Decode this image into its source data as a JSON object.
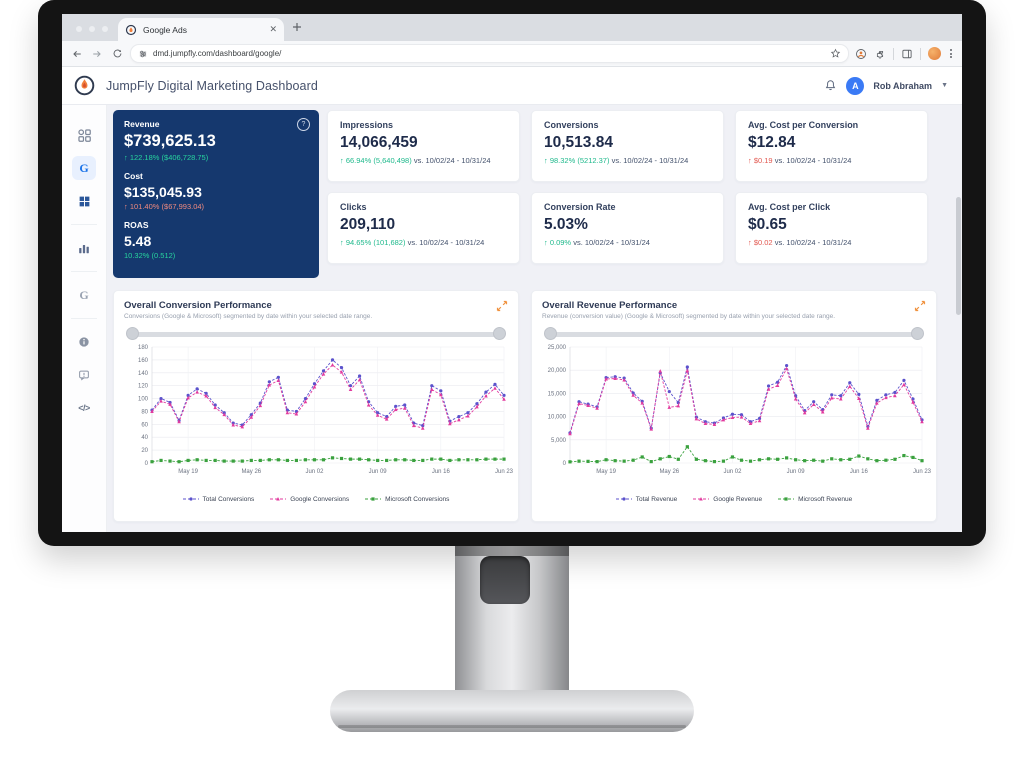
{
  "browser": {
    "tab_title": "Google Ads",
    "url": "dmd.jumpfly.com/dashboard/google/"
  },
  "header": {
    "title": "JumpFly Digital Marketing Dashboard",
    "user_name": "Rob Abraham",
    "avatar_letter": "A"
  },
  "sidebar": {
    "items": [
      {
        "name": "apps-grid"
      },
      {
        "name": "google-ads",
        "glyph": "G",
        "active": true
      },
      {
        "name": "microsoft-ads"
      },
      {
        "name": "bar-chart"
      },
      {
        "name": "google-analytics",
        "glyph": "G"
      },
      {
        "name": "info"
      },
      {
        "name": "feedback"
      },
      {
        "name": "developer",
        "glyph": "</>"
      }
    ]
  },
  "kpi": {
    "primary": {
      "help_glyph": "?",
      "metrics": [
        {
          "label": "Revenue",
          "value": "$739,625.13",
          "delta": "↑ 122.18% ($406,728.75)",
          "direction": "pos"
        },
        {
          "label": "Cost",
          "value": "$135,045.93",
          "delta": "↑ 101.40% ($67,993.04)",
          "direction": "neg"
        },
        {
          "label": "ROAS",
          "value": "5.48",
          "delta": "10.32% (0.512)",
          "direction": "pos"
        }
      ]
    },
    "cards": [
      {
        "label": "Impressions",
        "value": "14,066,459",
        "delta": "↑ 66.94% (5,640,498)",
        "direction": "pos",
        "compare": "vs. 10/02/24 - 10/31/24"
      },
      {
        "label": "Conversions",
        "value": "10,513.84",
        "delta": "↑ 98.32% (5212.37)",
        "direction": "pos",
        "compare": "vs. 10/02/24 - 10/31/24"
      },
      {
        "label": "Avg. Cost per Conversion",
        "value": "$12.84",
        "delta": "↑ $0.19",
        "direction": "neg",
        "compare": "vs. 10/02/24 - 10/31/24"
      },
      {
        "label": "Clicks",
        "value": "209,110",
        "delta": "↑ 94.65% (101,682)",
        "direction": "pos",
        "compare": "vs. 10/02/24 - 10/31/24"
      },
      {
        "label": "Conversion Rate",
        "value": "5.03%",
        "delta": "↑ 0.09%",
        "direction": "pos",
        "compare": "vs. 10/02/24 - 10/31/24"
      },
      {
        "label": "Avg. Cost per Click",
        "value": "$0.65",
        "delta": "↑ $0.02",
        "direction": "neg",
        "compare": "vs. 10/02/24 - 10/31/24"
      }
    ]
  },
  "chart_data": [
    {
      "type": "line",
      "title": "Overall Conversion Performance",
      "subtitle": "Conversions (Google & Microsoft) segmented by date within your selected date range.",
      "x_labels": [
        "May 19",
        "May 26",
        "Jun 02",
        "Jun 09",
        "Jun 16",
        "Jun 23"
      ],
      "x_label_indices": [
        4,
        11,
        18,
        25,
        32,
        39
      ],
      "ylim": [
        0,
        180
      ],
      "y_ticks": [
        0,
        20,
        40,
        60,
        80,
        100,
        120,
        140,
        160,
        180
      ],
      "y_tick_labels": [
        "0",
        "20",
        "40",
        "60",
        "80",
        "100",
        "120",
        "140",
        "160",
        "180"
      ],
      "grid": true,
      "legend_position": "bottom",
      "series": [
        {
          "name": "Total Conversions",
          "color": "#5b52cc",
          "marker": "circle",
          "values": [
            82,
            100,
            94,
            66,
            105,
            115,
            108,
            90,
            78,
            62,
            59,
            75,
            93,
            126,
            133,
            82,
            80,
            100,
            123,
            143,
            160,
            148,
            120,
            135,
            95,
            78,
            72,
            88,
            90,
            62,
            58,
            120,
            112,
            65,
            72,
            78,
            92,
            110,
            122,
            105
          ]
        },
        {
          "name": "Google Conversions",
          "color": "#e23a9e",
          "marker": "triangle",
          "values": [
            80,
            96,
            91,
            64,
            101,
            110,
            104,
            86,
            75,
            59,
            56,
            71,
            89,
            121,
            128,
            78,
            76,
            95,
            118,
            138,
            152,
            141,
            114,
            129,
            90,
            74,
            68,
            83,
            85,
            58,
            54,
            114,
            106,
            61,
            67,
            73,
            87,
            104,
            116,
            99
          ]
        },
        {
          "name": "Microsoft Conversions",
          "color": "#3aa13e",
          "marker": "square",
          "values": [
            2,
            4,
            3,
            2,
            4,
            5,
            4,
            4,
            3,
            3,
            3,
            4,
            4,
            5,
            5,
            4,
            4,
            5,
            5,
            5,
            8,
            7,
            6,
            6,
            5,
            4,
            4,
            5,
            5,
            4,
            4,
            6,
            6,
            4,
            5,
            5,
            5,
            6,
            6,
            6
          ]
        }
      ]
    },
    {
      "type": "line",
      "title": "Overall Revenue Performance",
      "subtitle": "Revenue (conversion value) (Google & Microsoft) segmented by date within your selected date range.",
      "x_labels": [
        "May 19",
        "May 26",
        "Jun 02",
        "Jun 09",
        "Jun 16",
        "Jun 23"
      ],
      "x_label_indices": [
        4,
        11,
        18,
        25,
        32,
        39
      ],
      "ylim": [
        0,
        25000
      ],
      "y_ticks": [
        0,
        5000,
        10000,
        15000,
        20000,
        25000
      ],
      "y_tick_labels": [
        "0",
        "5,000",
        "10,000",
        "15,000",
        "20,000",
        "25,000"
      ],
      "grid": true,
      "legend_position": "bottom",
      "series": [
        {
          "name": "Total Revenue",
          "color": "#5b52cc",
          "marker": "circle",
          "values": [
            6500,
            13200,
            12700,
            12100,
            18400,
            18600,
            18300,
            15100,
            13300,
            7500,
            19400,
            15400,
            13000,
            20700,
            9900,
            8900,
            8600,
            9700,
            10500,
            10400,
            8900,
            9600,
            16600,
            17400,
            21000,
            14500,
            11300,
            13200,
            11500,
            14700,
            14500,
            17300,
            14800,
            7900,
            13500,
            14700,
            15200,
            17800,
            13800,
            9300
          ]
        },
        {
          "name": "Google Revenue",
          "color": "#e23a9e",
          "marker": "triangle",
          "values": [
            6300,
            12800,
            12400,
            11800,
            18100,
            18200,
            17900,
            14600,
            12900,
            7300,
            19800,
            12000,
            12300,
            19900,
            9500,
            8500,
            8300,
            9300,
            9800,
            9900,
            8500,
            9100,
            15900,
            16700,
            20300,
            13800,
            10800,
            12600,
            11000,
            14000,
            13800,
            16500,
            13900,
            7500,
            12900,
            14100,
            14500,
            16900,
            13100,
            8900
          ]
        },
        {
          "name": "Microsoft Revenue",
          "color": "#3aa13e",
          "marker": "square",
          "values": [
            250,
            400,
            350,
            300,
            700,
            500,
            400,
            600,
            1300,
            300,
            900,
            1400,
            800,
            3500,
            800,
            500,
            300,
            400,
            1300,
            600,
            400,
            700,
            900,
            800,
            1100,
            700,
            500,
            600,
            400,
            900,
            700,
            800,
            1500,
            900,
            500,
            600,
            800,
            1600,
            1200,
            500
          ]
        }
      ]
    }
  ],
  "colors": {
    "navy_card": "#15386e",
    "positive": "#1fb98c",
    "negative": "#e2574f",
    "accent_orange": "#f0923f",
    "active_sidebar_bg": "#e8f0fe",
    "total_line": "#5b52cc",
    "google_line": "#e23a9e",
    "microsoft_line": "#3aa13e"
  }
}
